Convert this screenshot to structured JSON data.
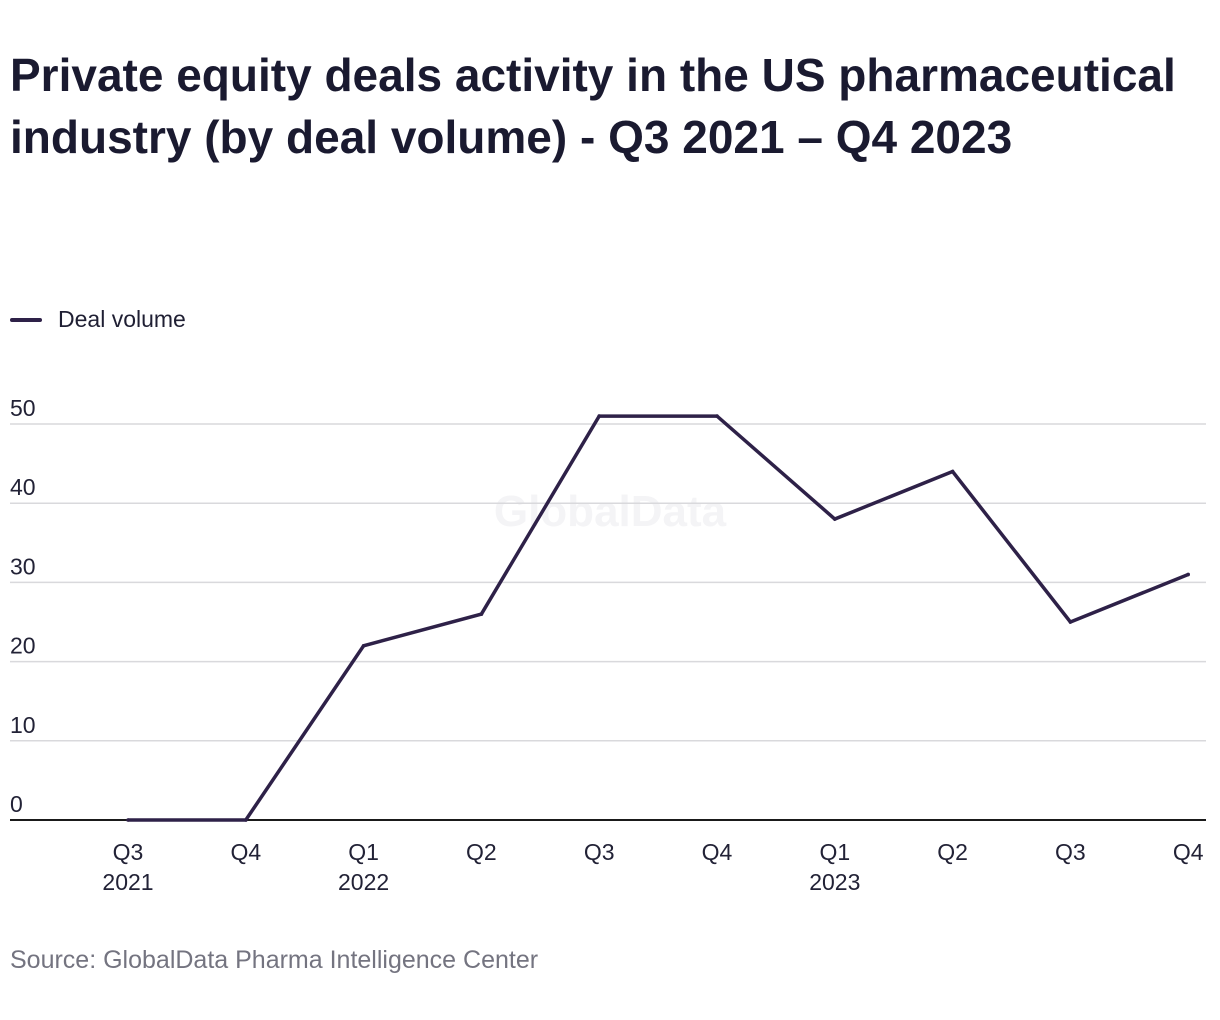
{
  "chart_data": {
    "type": "line",
    "title": "Private equity deals activity in the US pharmaceutical industry (by deal volume) - Q3 2021 – Q4 2023",
    "categories": [
      [
        "Q3",
        "2021"
      ],
      [
        "Q4",
        ""
      ],
      [
        "Q1",
        "2022"
      ],
      [
        "Q2",
        ""
      ],
      [
        "Q3",
        ""
      ],
      [
        "Q4",
        ""
      ],
      [
        "Q1",
        "2023"
      ],
      [
        "Q2",
        ""
      ],
      [
        "Q3",
        ""
      ],
      [
        "Q4",
        ""
      ]
    ],
    "series": [
      {
        "name": "Deal volume",
        "values": [
          0,
          0,
          22,
          26,
          51,
          51,
          38,
          44,
          25,
          31
        ],
        "color": "#2e2148"
      }
    ],
    "yticks": [
      0,
      10,
      20,
      30,
      40,
      50
    ],
    "ylim": [
      0,
      50
    ],
    "grid": true,
    "legend_position": "top-left",
    "watermark": "GlobalData",
    "source": "Source: GlobalData Pharma Intelligence Center"
  }
}
